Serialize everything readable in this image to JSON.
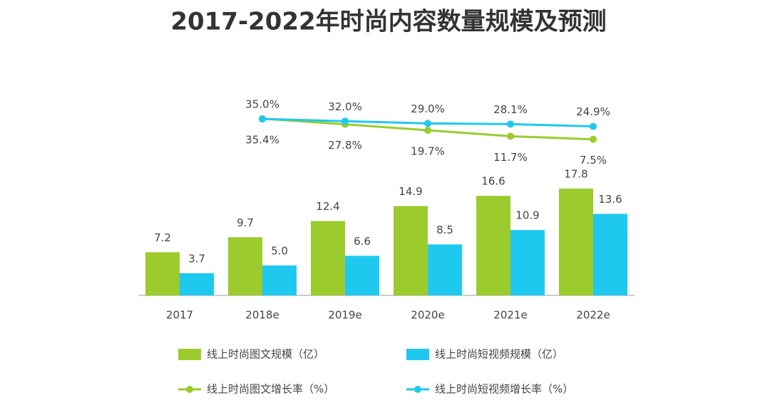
{
  "chart_data": {
    "type": "bar",
    "title": "2017-2022年时尚内容数量规模及预测",
    "categories": [
      "2017",
      "2018e",
      "2019e",
      "2020e",
      "2021e",
      "2022e"
    ],
    "ylim": [
      0,
      40
    ],
    "y2lim": [
      -204,
      121
    ],
    "series": [
      {
        "name": "线上时尚图文规模（亿）",
        "type": "bar",
        "color": "#9bcb2c",
        "values": [
          7.2,
          9.7,
          12.4,
          14.9,
          16.6,
          17.8
        ],
        "value_labels": [
          "7.2",
          "9.7",
          "12.4",
          "14.9",
          "16.6",
          "17.8"
        ]
      },
      {
        "name": "线上时尚短视频规模（亿）",
        "type": "bar",
        "color": "#1fc8ee",
        "values": [
          3.7,
          5.0,
          6.6,
          8.5,
          10.9,
          13.6
        ],
        "value_labels": [
          "3.7",
          "5.0",
          "6.6",
          "8.5",
          "10.9",
          "13.6"
        ]
      },
      {
        "name": "线上时尚图文增长率（%）",
        "type": "line",
        "axis": "y2",
        "color": "#9bcb2c",
        "values": [
          null,
          35.4,
          27.8,
          19.7,
          11.7,
          7.5
        ],
        "value_labels": [
          null,
          "35.4%",
          "27.8%",
          "19.7%",
          "11.7%",
          "7.5%"
        ]
      },
      {
        "name": "线上时尚短视频增长率（%）",
        "type": "line",
        "axis": "y2",
        "color": "#1fc8ee",
        "values": [
          null,
          35.0,
          32.0,
          29.0,
          28.1,
          24.9
        ],
        "value_labels": [
          null,
          "35.0%",
          "32.0%",
          "29.0%",
          "28.1%",
          "24.9%"
        ]
      }
    ]
  }
}
